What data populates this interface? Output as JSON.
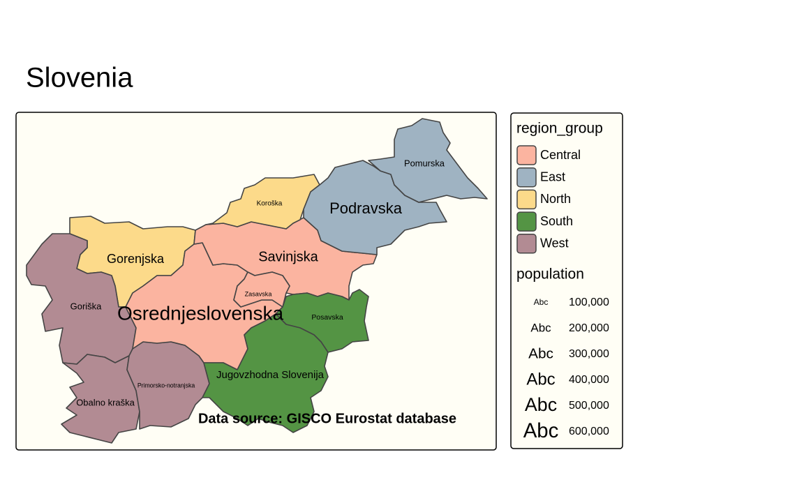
{
  "title": "Slovenia",
  "caption": "Data source: GISCO Eurostat database",
  "legend": {
    "group_title": "region_group",
    "groups": [
      {
        "name": "Central",
        "color": "#fbb4a0"
      },
      {
        "name": "East",
        "color": "#9fb3c2"
      },
      {
        "name": "North",
        "color": "#fcda8a"
      },
      {
        "name": "South",
        "color": "#549444"
      },
      {
        "name": "West",
        "color": "#b28b93"
      }
    ],
    "size_title": "population",
    "sample_text": "Abc",
    "sizes": [
      {
        "value": 100000,
        "label": "100,000"
      },
      {
        "value": 200000,
        "label": "200,000"
      },
      {
        "value": 300000,
        "label": "300,000"
      },
      {
        "value": 400000,
        "label": "400,000"
      },
      {
        "value": 500000,
        "label": "500,000"
      },
      {
        "value": 600000,
        "label": "600,000"
      }
    ]
  },
  "regions": [
    {
      "label": "Gorenjska",
      "group": 2,
      "population": 225000
    },
    {
      "label": "Goriška",
      "group": 4,
      "population": 117000
    },
    {
      "label": "Obalno kraška",
      "group": 4,
      "population": 117000
    },
    {
      "label": "Primorsko-notranjska",
      "group": 4,
      "population": 53000
    },
    {
      "label": "Osrednjeslovenska",
      "group": 0,
      "population": 545000
    },
    {
      "label": "Savinjska",
      "group": 0,
      "population": 278000
    },
    {
      "label": "Zasavska",
      "group": 0,
      "population": 57000
    },
    {
      "label": "Koroška",
      "group": 2,
      "population": 70000
    },
    {
      "label": "Podravska",
      "group": 1,
      "population": 336000
    },
    {
      "label": "Pomurska",
      "group": 1,
      "population": 115000
    },
    {
      "label": "Posavska",
      "group": 3,
      "population": 76000
    },
    {
      "label": "Jugovzhodna Slovenija",
      "group": 3,
      "population": 156000
    }
  ]
}
